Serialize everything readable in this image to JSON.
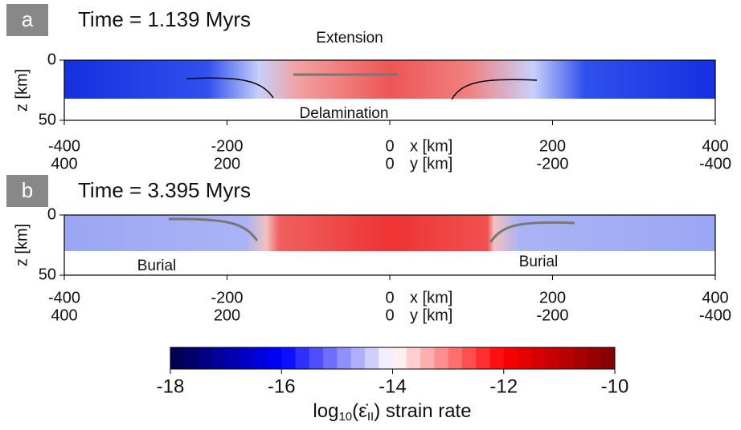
{
  "panels": [
    {
      "label": "a",
      "title": "Time = 1.139 Myrs",
      "annotations": [
        "Extension",
        "Delamination"
      ],
      "z_label": "z [km]",
      "z_ticks": [
        0,
        50
      ],
      "x_label": "x [km]",
      "y_label": "y [km]",
      "x_ticks": [
        -400,
        -200,
        0,
        200,
        400
      ],
      "y_ticks": [
        400,
        200,
        0,
        -200,
        -400
      ]
    },
    {
      "label": "b",
      "title": "Time = 3.395 Myrs",
      "annotations": [
        "Burial",
        "Burial"
      ],
      "z_label": "z [km]",
      "z_ticks": [
        0,
        50
      ],
      "x_label": "x [km]",
      "y_label": "y [km]",
      "x_ticks": [
        -400,
        -200,
        0,
        200,
        400
      ],
      "y_ticks": [
        400,
        200,
        0,
        -200,
        -400
      ]
    }
  ],
  "colorbar": {
    "label_parts": [
      "log",
      "10",
      "(ε̇",
      "II",
      ") strain rate"
    ],
    "lim": [
      -18,
      -10
    ],
    "ticks": [
      -18,
      -16,
      -14,
      -12,
      -10
    ]
  }
}
